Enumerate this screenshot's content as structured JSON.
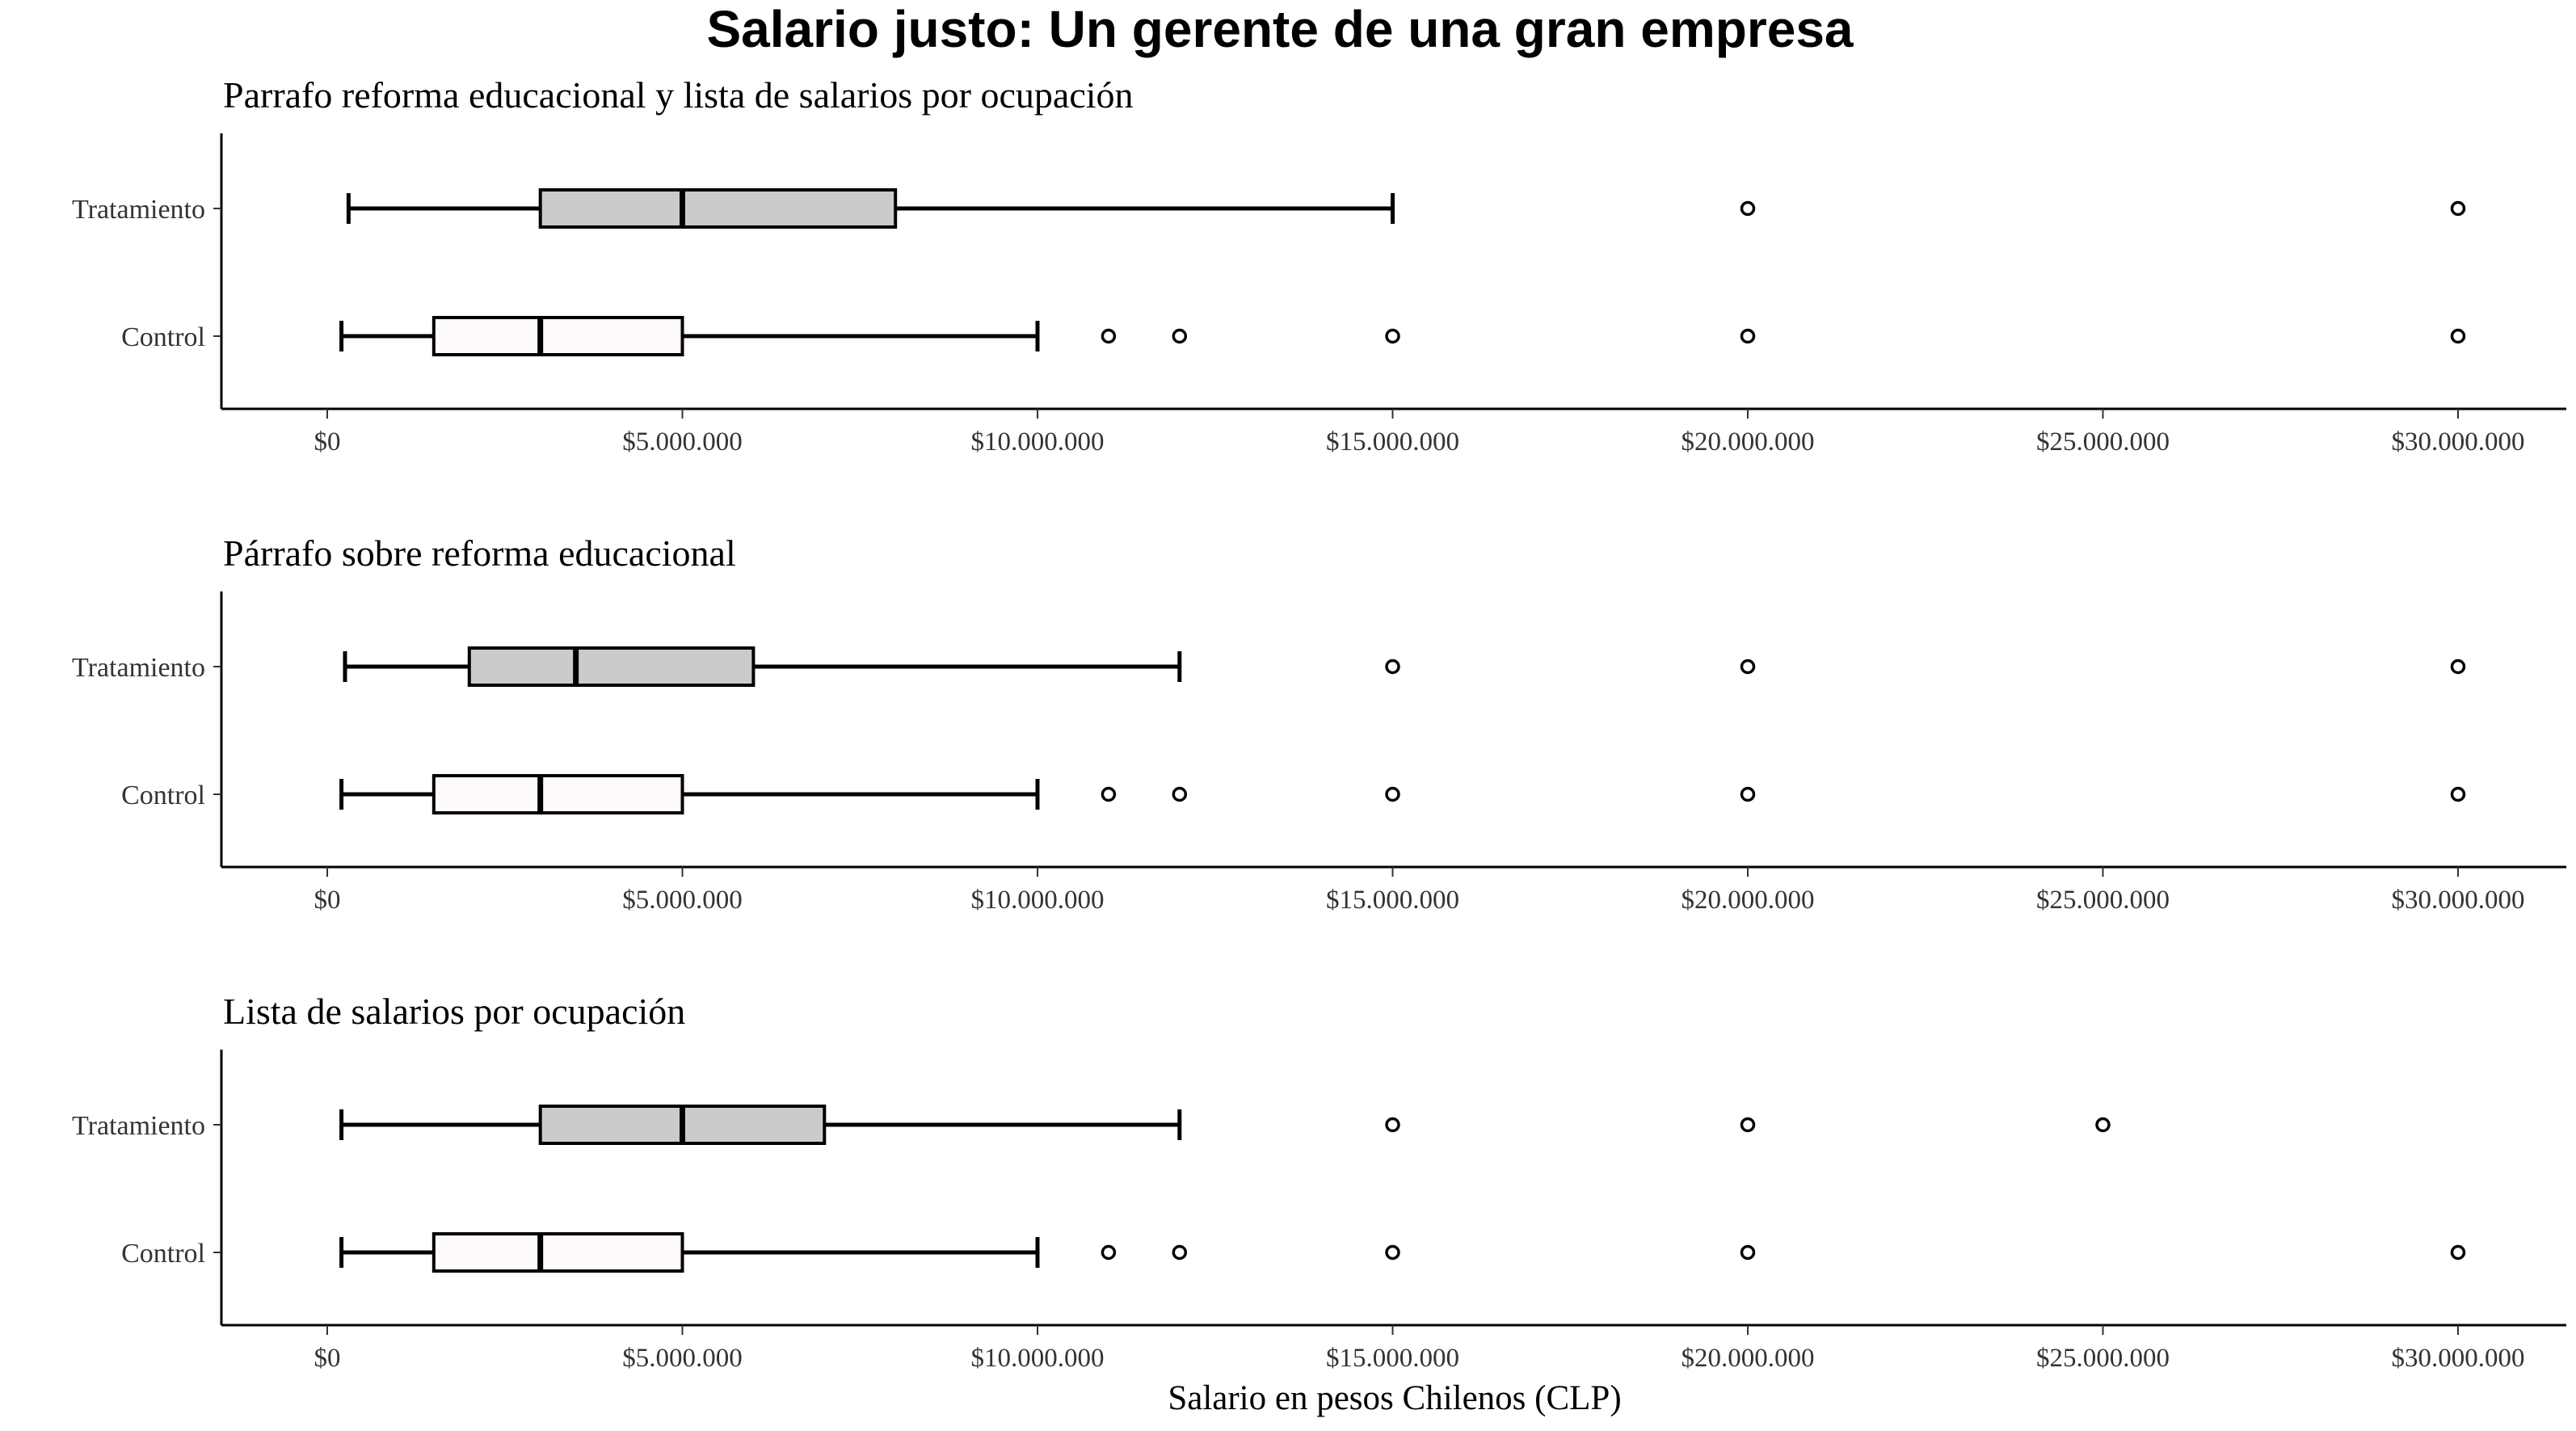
{
  "chart_data": {
    "type": "boxplot",
    "title": "Salario justo: Un gerente de una gran empresa",
    "xlabel": "Salario en pesos Chilenos (CLP)",
    "xlim": [
      -1500000,
      31500000
    ],
    "xticks": [
      0,
      5000000,
      10000000,
      15000000,
      20000000,
      25000000,
      30000000
    ],
    "xtick_labels": [
      "$0",
      "$5.000.000",
      "$10.000.000",
      "$15.000.000",
      "$20.000.000",
      "$25.000.000",
      "$30.000.000"
    ],
    "categories": [
      "Tratamiento",
      "Control"
    ],
    "colors": {
      "Tratamiento": "#cccaca",
      "Control": "#fffafa"
    },
    "panels": [
      {
        "subtitle": "Parrafo reforma educacional y lista de salarios por ocupación",
        "groups": [
          {
            "name": "Tratamiento",
            "whisker_low": 300000,
            "q1": 3000000,
            "median": 5000000,
            "q3": 8000000,
            "whisker_high": 15000000,
            "outliers": [
              20000000,
              30000000
            ]
          },
          {
            "name": "Control",
            "whisker_low": 200000,
            "q1": 1500000,
            "median": 3000000,
            "q3": 5000000,
            "whisker_high": 10000000,
            "outliers": [
              11000000,
              12000000,
              15000000,
              20000000,
              30000000
            ]
          }
        ]
      },
      {
        "subtitle": "Párrafo sobre reforma educacional",
        "groups": [
          {
            "name": "Tratamiento",
            "whisker_low": 250000,
            "q1": 2000000,
            "median": 3500000,
            "q3": 6000000,
            "whisker_high": 12000000,
            "outliers": [
              15000000,
              20000000,
              30000000
            ]
          },
          {
            "name": "Control",
            "whisker_low": 200000,
            "q1": 1500000,
            "median": 3000000,
            "q3": 5000000,
            "whisker_high": 10000000,
            "outliers": [
              11000000,
              12000000,
              15000000,
              20000000,
              30000000
            ]
          }
        ]
      },
      {
        "subtitle": "Lista de salarios por ocupación",
        "groups": [
          {
            "name": "Tratamiento",
            "whisker_low": 200000,
            "q1": 3000000,
            "median": 5000000,
            "q3": 7000000,
            "whisker_high": 12000000,
            "outliers": [
              15000000,
              20000000,
              25000000
            ]
          },
          {
            "name": "Control",
            "whisker_low": 200000,
            "q1": 1500000,
            "median": 3000000,
            "q3": 5000000,
            "whisker_high": 10000000,
            "outliers": [
              11000000,
              12000000,
              15000000,
              20000000,
              30000000
            ]
          }
        ]
      }
    ]
  }
}
